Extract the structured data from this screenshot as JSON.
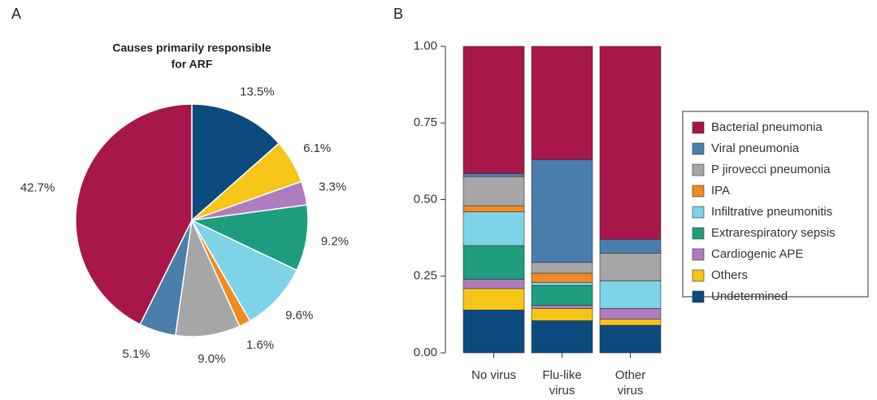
{
  "chart_data": [
    {
      "type": "pie",
      "panel": "A",
      "title": [
        "Causes primarily responsible",
        "for ARF"
      ],
      "values": [
        13.5,
        6.1,
        3.3,
        9.2,
        9.6,
        1.6,
        9.0,
        5.1,
        42.7
      ],
      "value_labels": [
        "13.5%",
        "6.1%",
        "3.3%",
        "9.2%",
        "9.6%",
        "1.6%",
        "9.0%",
        "5.1%",
        "42.7%"
      ],
      "colors": [
        "#0d4a7e",
        "#f5c518",
        "#b07cc0",
        "#1e9e7e",
        "#7fd3e6",
        "#f08a24",
        "#a6a6a6",
        "#4a7fab",
        "#a8174a"
      ]
    },
    {
      "type": "stacked_bar",
      "panel": "B",
      "categories": [
        [
          "No virus"
        ],
        [
          "Flu-like",
          "virus"
        ],
        [
          "Other",
          "virus"
        ]
      ],
      "ylim": [
        0,
        1
      ],
      "yticks": [
        {
          "value": 0,
          "label": "0.00"
        },
        {
          "value": 0.25,
          "label": "0.25"
        },
        {
          "value": 0.5,
          "label": "0.50"
        },
        {
          "value": 0.75,
          "label": "0.75"
        },
        {
          "value": 1,
          "label": "1.00"
        }
      ],
      "series": [
        {
          "name": "Bacterial pneumonia",
          "color": "#a8174a",
          "values": [
            0.415,
            0.37,
            0.63
          ]
        },
        {
          "name": "Viral pneumonia",
          "color": "#4a7fab",
          "values": [
            0.01,
            0.335,
            0.045
          ]
        },
        {
          "name": "P jirovecci pneumonia",
          "color": "#a6a6a6",
          "values": [
            0.095,
            0.035,
            0.09
          ]
        },
        {
          "name": "IPA",
          "color": "#f08a24",
          "values": [
            0.02,
            0.03,
            0
          ]
        },
        {
          "name": "Infiltrative pneumonitis",
          "color": "#7fd3e6",
          "values": [
            0.11,
            0.01,
            0.09
          ]
        },
        {
          "name": "Extrarespiratory sepsis",
          "color": "#1e9e7e",
          "values": [
            0.11,
            0.065,
            0
          ]
        },
        {
          "name": "Cardiogenic APE",
          "color": "#b07cc0",
          "values": [
            0.03,
            0.01,
            0.035
          ]
        },
        {
          "name": "Others",
          "color": "#f5c518",
          "values": [
            0.07,
            0.04,
            0.02
          ]
        },
        {
          "name": "Undetermined",
          "color": "#0d4a7e",
          "values": [
            0.14,
            0.105,
            0.09
          ]
        }
      ]
    }
  ]
}
